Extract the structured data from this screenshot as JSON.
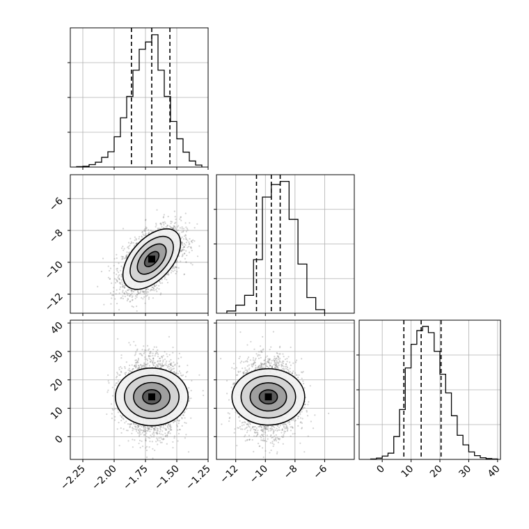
{
  "chart_data": [
    {
      "type": "histogram",
      "panel": "p1",
      "xlim": [
        -2.35,
        -1.25
      ],
      "bins": [
        -2.3,
        -2.25,
        -2.2,
        -2.15,
        -2.1,
        -2.05,
        -2.0,
        -1.95,
        -1.9,
        -1.85,
        -1.8,
        -1.75,
        -1.7,
        -1.65,
        -1.6,
        -1.55,
        -1.5,
        -1.45,
        -1.4,
        -1.35,
        -1.3
      ],
      "counts": [
        1,
        2,
        6,
        12,
        24,
        38,
        75,
        122,
        175,
        240,
        292,
        310,
        328,
        240,
        175,
        113,
        70,
        37,
        15,
        5
      ],
      "ymax": 345,
      "quantiles": [
        -1.862,
        -1.7,
        -1.555
      ]
    },
    {
      "type": "histogram",
      "panel": "p2",
      "xlim": [
        -13.3,
        -4.0
      ],
      "bins": [
        -12.6,
        -12.0,
        -11.4,
        -10.8,
        -10.2,
        -9.6,
        -9.0,
        -8.4,
        -7.8,
        -7.2,
        -6.6,
        -6.0
      ],
      "counts": [
        5,
        18,
        40,
        120,
        260,
        288,
        295,
        210,
        110,
        35,
        8
      ],
      "ymax": 310,
      "quantiles": [
        -10.6,
        -9.6,
        -9.0
      ]
    },
    {
      "type": "histogram",
      "panel": "p3",
      "xlim": [
        -8,
        41
      ],
      "bins": [
        -4,
        -2,
        0,
        2,
        4,
        6,
        8,
        10,
        12,
        14,
        16,
        18,
        20,
        22,
        24,
        26,
        28,
        30,
        32,
        34,
        36,
        38,
        40
      ],
      "counts": [
        1,
        3,
        8,
        15,
        55,
        120,
        220,
        277,
        310,
        320,
        305,
        260,
        205,
        160,
        105,
        58,
        35,
        18,
        9,
        4,
        2,
        1
      ],
      "ymax": 335,
      "quantiles": [
        7.5,
        13.5,
        20.4
      ]
    },
    {
      "type": "contour",
      "panel": "p4",
      "xlim": [
        -2.35,
        -1.25
      ],
      "ylim": [
        -13.2,
        -4.5
      ],
      "x": "param_0",
      "y": "param_1",
      "center": [
        -1.7,
        -9.8
      ],
      "sigma_x": 0.115,
      "sigma_y": 0.95,
      "rho": 0.52
    },
    {
      "type": "contour",
      "panel": "p5",
      "xlim": [
        -2.35,
        -1.25
      ],
      "ylim": [
        -8,
        41
      ],
      "x": "param_0",
      "y": "param_2",
      "center": [
        -1.7,
        14.0
      ],
      "sigma_x": 0.115,
      "sigma_y": 6.4,
      "rho": 0.0
    },
    {
      "type": "contour",
      "panel": "p6",
      "xlim": [
        -13.3,
        -4.0
      ],
      "ylim": [
        -8,
        41
      ],
      "x": "param_1",
      "y": "param_2",
      "center": [
        -9.8,
        14.0
      ],
      "sigma_x": 0.95,
      "sigma_y": 6.4,
      "rho": 0.0
    }
  ],
  "axes": {
    "param_0": {
      "ticks": [
        -2.25,
        -2.0,
        -1.75,
        -1.5,
        -1.25
      ],
      "tick_labels": [
        "−2.25",
        "−2.00",
        "−1.75",
        "−1.50",
        "−1.25"
      ]
    },
    "param_1": {
      "ticks_x": [
        -12,
        -10,
        -8,
        -6
      ],
      "tick_labels_x": [
        "−12",
        "−10",
        "−8",
        "−6"
      ],
      "ticks_y": [
        -12,
        -10,
        -8,
        -6
      ],
      "tick_labels_y": [
        "−12",
        "−10",
        "−8",
        "−6"
      ]
    },
    "param_2": {
      "ticks_x": [
        0,
        10,
        20,
        30,
        40
      ],
      "tick_labels_x": [
        "0",
        "10",
        "20",
        "30",
        "40"
      ],
      "ticks_y": [
        0,
        10,
        20,
        30,
        40
      ],
      "tick_labels_y": [
        "0",
        "10",
        "20",
        "30",
        "40"
      ]
    }
  },
  "style": {
    "line_color": "#000000",
    "grid_color": "#b0b0b0",
    "point_color": "#7f7f7f",
    "background": "#ffffff"
  },
  "grid": true
}
